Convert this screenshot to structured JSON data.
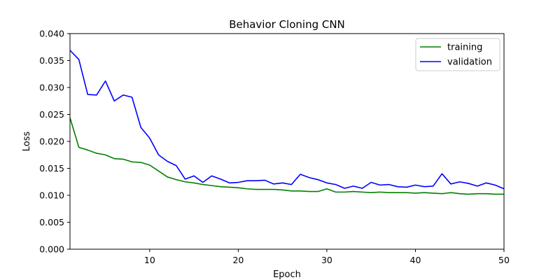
{
  "chart_data": {
    "type": "line",
    "title": "Behavior Cloning CNN",
    "xlabel": "Epoch",
    "ylabel": "Loss",
    "xlim": [
      1,
      50
    ],
    "ylim": [
      0,
      0.04
    ],
    "xticks": [
      10,
      20,
      30,
      40,
      50
    ],
    "xtick_labels": [
      "10",
      "20",
      "30",
      "40",
      "50"
    ],
    "yticks": [
      0,
      0.005,
      0.01,
      0.015,
      0.02,
      0.025,
      0.03,
      0.035,
      0.04
    ],
    "ytick_labels": [
      "0.000",
      "0.005",
      "0.010",
      "0.015",
      "0.020",
      "0.025",
      "0.030",
      "0.035",
      "0.040"
    ],
    "grid": false,
    "legend_position": "top-right",
    "x": [
      1,
      2,
      3,
      4,
      5,
      6,
      7,
      8,
      9,
      10,
      11,
      12,
      13,
      14,
      15,
      16,
      17,
      18,
      19,
      20,
      21,
      22,
      23,
      24,
      25,
      26,
      27,
      28,
      29,
      30,
      31,
      32,
      33,
      34,
      35,
      36,
      37,
      38,
      39,
      40,
      41,
      42,
      43,
      44,
      45,
      46,
      47,
      48,
      49,
      50
    ],
    "series": [
      {
        "name": "training",
        "color": "#008000",
        "values": [
          0.0244,
          0.0189,
          0.0184,
          0.0178,
          0.0175,
          0.0168,
          0.0167,
          0.0162,
          0.0161,
          0.0156,
          0.0145,
          0.0134,
          0.0129,
          0.0125,
          0.0123,
          0.012,
          0.0118,
          0.0116,
          0.0115,
          0.0114,
          0.0112,
          0.0111,
          0.0111,
          0.0111,
          0.011,
          0.0108,
          0.0108,
          0.0107,
          0.0107,
          0.0112,
          0.0106,
          0.0106,
          0.0107,
          0.0106,
          0.0105,
          0.0106,
          0.0105,
          0.0105,
          0.0105,
          0.0104,
          0.0105,
          0.0104,
          0.0103,
          0.0105,
          0.0103,
          0.0102,
          0.0103,
          0.0103,
          0.0102,
          0.0102
        ]
      },
      {
        "name": "validation",
        "color": "#0000ff",
        "values": [
          0.0369,
          0.0352,
          0.0287,
          0.0286,
          0.0312,
          0.0275,
          0.0286,
          0.0282,
          0.0226,
          0.0206,
          0.0175,
          0.0163,
          0.0155,
          0.013,
          0.0136,
          0.0124,
          0.0136,
          0.013,
          0.0123,
          0.0124,
          0.0127,
          0.0127,
          0.0128,
          0.0121,
          0.0123,
          0.012,
          0.0139,
          0.0133,
          0.0129,
          0.0123,
          0.012,
          0.0113,
          0.0117,
          0.0113,
          0.0124,
          0.0119,
          0.012,
          0.0116,
          0.0115,
          0.0119,
          0.0116,
          0.0117,
          0.014,
          0.0121,
          0.0125,
          0.0122,
          0.0117,
          0.0123,
          0.0119,
          0.0112
        ]
      }
    ]
  }
}
